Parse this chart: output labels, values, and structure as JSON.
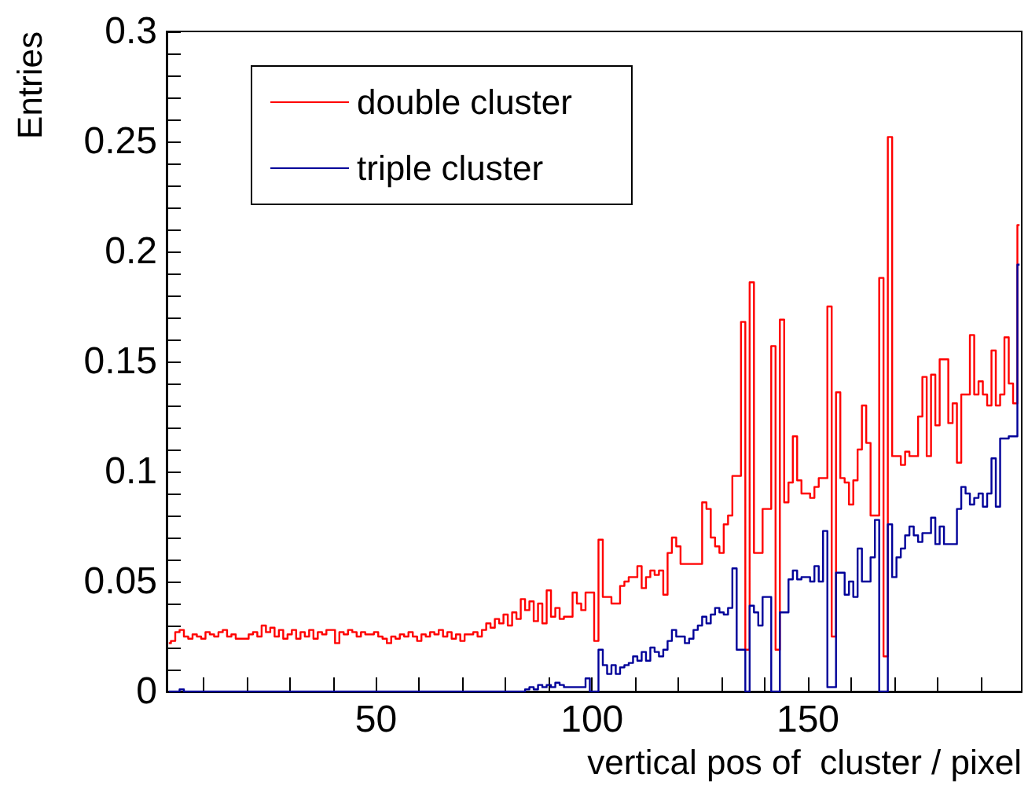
{
  "chart_data": {
    "type": "step",
    "xlabel": "vertical pos of  cluster / pixel",
    "ylabel": "Entries",
    "x": [
      2,
      3,
      4,
      5,
      6,
      7,
      8,
      9,
      10,
      11,
      12,
      13,
      14,
      15,
      16,
      17,
      18,
      19,
      20,
      21,
      22,
      23,
      24,
      25,
      26,
      27,
      28,
      29,
      30,
      31,
      32,
      33,
      34,
      35,
      36,
      37,
      38,
      39,
      40,
      41,
      42,
      43,
      44,
      45,
      46,
      47,
      48,
      49,
      50,
      51,
      52,
      53,
      54,
      55,
      56,
      57,
      58,
      59,
      60,
      61,
      62,
      63,
      64,
      65,
      66,
      67,
      68,
      69,
      70,
      71,
      72,
      73,
      74,
      75,
      76,
      77,
      78,
      79,
      80,
      81,
      82,
      83,
      84,
      85,
      86,
      87,
      88,
      89,
      90,
      91,
      92,
      93,
      94,
      95,
      96,
      97,
      98,
      99,
      100,
      101,
      102,
      103,
      104,
      105,
      106,
      107,
      108,
      109,
      110,
      111,
      112,
      113,
      114,
      115,
      116,
      117,
      118,
      119,
      120,
      121,
      122,
      123,
      124,
      125,
      126,
      127,
      128,
      129,
      130,
      131,
      132,
      133,
      134,
      135,
      136,
      137,
      138,
      139,
      140,
      141,
      142,
      143,
      144,
      145,
      146,
      147,
      148,
      149,
      150,
      151,
      152,
      153,
      154,
      155,
      156,
      157,
      158,
      159,
      160,
      161,
      162,
      163,
      164,
      165,
      166,
      167,
      168,
      169,
      170,
      171,
      172,
      173,
      174,
      175,
      176,
      177,
      178,
      179,
      180,
      181,
      182,
      183,
      184,
      185,
      186,
      187,
      188,
      189,
      190,
      191,
      192,
      193,
      194,
      195,
      196,
      197,
      198,
      199
    ],
    "series": [
      {
        "name": "double cluster",
        "color": "#ff0000",
        "values": [
          0.022,
          0.023,
          0.027,
          0.028,
          0.025,
          0.024,
          0.026,
          0.025,
          0.024,
          0.027,
          0.026,
          0.025,
          0.027,
          0.028,
          0.025,
          0.026,
          0.024,
          0.024,
          0.024,
          0.026,
          0.027,
          0.025,
          0.03,
          0.027,
          0.029,
          0.025,
          0.028,
          0.024,
          0.026,
          0.028,
          0.024,
          0.027,
          0.025,
          0.028,
          0.024,
          0.027,
          0.026,
          0.028,
          0.028,
          0.022,
          0.027,
          0.026,
          0.028,
          0.027,
          0.025,
          0.027,
          0.026,
          0.026,
          0.027,
          0.025,
          0.024,
          0.022,
          0.025,
          0.024,
          0.026,
          0.025,
          0.027,
          0.025,
          0.023,
          0.026,
          0.025,
          0.027,
          0.026,
          0.028,
          0.025,
          0.027,
          0.024,
          0.026,
          0.023,
          0.026,
          0.026,
          0.027,
          0.025,
          0.028,
          0.031,
          0.029,
          0.033,
          0.031,
          0.035,
          0.03,
          0.036,
          0.033,
          0.042,
          0.037,
          0.041,
          0.032,
          0.04,
          0.031,
          0.046,
          0.034,
          0.038,
          0.033,
          0.034,
          0.034,
          0.045,
          0.04,
          0.037,
          0.045,
          0.045,
          0.023,
          0.069,
          0.043,
          0.043,
          0.04,
          0.04,
          0.048,
          0.05,
          0.052,
          0.052,
          0.057,
          0.047,
          0.052,
          0.055,
          0.053,
          0.055,
          0.044,
          0.063,
          0.07,
          0.066,
          0.058,
          0.058,
          0.058,
          0.058,
          0.058,
          0.086,
          0.083,
          0.07,
          0.066,
          0.063,
          0.076,
          0.08,
          0.098,
          0.098,
          0.168,
          0.019,
          0.186,
          0.063,
          0.063,
          0.083,
          0.083,
          0.157,
          0.019,
          0.169,
          0.086,
          0.095,
          0.116,
          0.096,
          0.09,
          0.09,
          0.088,
          0.093,
          0.097,
          0.097,
          0.175,
          0.025,
          0.136,
          0.097,
          0.095,
          0.085,
          0.096,
          0.11,
          0.13,
          0.113,
          0.08,
          0.08,
          0.188,
          0.016,
          0.252,
          0.107,
          0.107,
          0.103,
          0.109,
          0.107,
          0.107,
          0.125,
          0.143,
          0.107,
          0.144,
          0.121,
          0.151,
          0.151,
          0.122,
          0.131,
          0.104,
          0.135,
          0.135,
          0.162,
          0.135,
          0.141,
          0.135,
          0.13,
          0.155,
          0.13,
          0.135,
          0.161,
          0.14,
          0.131,
          0.212
        ]
      },
      {
        "name": "triple cluster",
        "color": "#000099",
        "values": [
          0,
          0,
          0,
          0.001,
          0,
          0,
          0,
          0,
          0,
          0,
          0,
          0,
          0,
          0,
          0,
          0,
          0,
          0,
          0,
          0,
          0,
          0,
          0,
          0,
          0,
          0,
          0,
          0,
          0,
          0,
          0,
          0,
          0,
          0,
          0,
          0,
          0,
          0,
          0,
          0,
          0,
          0,
          0,
          0,
          0,
          0,
          0,
          0,
          0,
          0,
          0,
          0,
          0,
          0,
          0,
          0,
          0,
          0,
          0,
          0,
          0,
          0,
          0,
          0,
          0,
          0,
          0,
          0,
          0,
          0,
          0,
          0,
          0,
          0,
          0,
          0,
          0,
          0,
          0,
          0,
          0,
          0,
          0,
          0.001,
          0.002,
          0.001,
          0.003,
          0.002,
          0.003,
          0.002,
          0.004,
          0.003,
          0.002,
          0.002,
          0.002,
          0.002,
          0.002,
          0.006,
          0,
          0,
          0.019,
          0.012,
          0.008,
          0.012,
          0.008,
          0.011,
          0.012,
          0.013,
          0.016,
          0.014,
          0.018,
          0.014,
          0.02,
          0.018,
          0.016,
          0.019,
          0.023,
          0.028,
          0.025,
          0.025,
          0.022,
          0.024,
          0.028,
          0.03,
          0.034,
          0.031,
          0.035,
          0.038,
          0.036,
          0.035,
          0.038,
          0.056,
          0.019,
          0.019,
          0,
          0.039,
          0.036,
          0.03,
          0.043,
          0.043,
          0,
          0,
          0.036,
          0.036,
          0.051,
          0.055,
          0.051,
          0.052,
          0.052,
          0.05,
          0.057,
          0.05,
          0.073,
          0.002,
          0.002,
          0.054,
          0.054,
          0.044,
          0.05,
          0.043,
          0.065,
          0.05,
          0.05,
          0.061,
          0.078,
          0,
          0,
          0.076,
          0.052,
          0.061,
          0.065,
          0.071,
          0.075,
          0.071,
          0.068,
          0.072,
          0.072,
          0.079,
          0.067,
          0.075,
          0.067,
          0.067,
          0.067,
          0.083,
          0.093,
          0.09,
          0.085,
          0.088,
          0.09,
          0.084,
          0.09,
          0.106,
          0.084,
          0.115,
          0.115,
          0.116,
          0.116,
          0.194
        ]
      }
    ],
    "xlim": [
      1.5,
      199.5
    ],
    "xticks": [
      {
        "value": 10,
        "label": null
      },
      {
        "value": 20,
        "label": null
      },
      {
        "value": 30,
        "label": null
      },
      {
        "value": 40,
        "label": null
      },
      50,
      {
        "value": 60,
        "label": null
      },
      {
        "value": 70,
        "label": null
      },
      {
        "value": 80,
        "label": null
      },
      {
        "value": 90,
        "label": null
      },
      100,
      {
        "value": 110,
        "label": null
      },
      {
        "value": 120,
        "label": null
      },
      {
        "value": 130,
        "label": null
      },
      {
        "value": 140,
        "label": null
      },
      150,
      {
        "value": 160,
        "label": null
      },
      {
        "value": 170,
        "label": null
      },
      {
        "value": 180,
        "label": null
      },
      {
        "value": 190,
        "label": null
      }
    ],
    "ylim": [
      0,
      0.3
    ],
    "yticks": [
      0,
      {
        "value": 0.01,
        "label": null
      },
      {
        "value": 0.02,
        "label": null
      },
      {
        "value": 0.03,
        "label": null
      },
      {
        "value": 0.04,
        "label": null
      },
      0.05,
      {
        "value": 0.06,
        "label": null
      },
      {
        "value": 0.07,
        "label": null
      },
      {
        "value": 0.08,
        "label": null
      },
      {
        "value": 0.09,
        "label": null
      },
      0.1,
      {
        "value": 0.11,
        "label": null
      },
      {
        "value": 0.12,
        "label": null
      },
      {
        "value": 0.13,
        "label": null
      },
      {
        "value": 0.14,
        "label": null
      },
      0.15,
      {
        "value": 0.16,
        "label": null
      },
      {
        "value": 0.17,
        "label": null
      },
      {
        "value": 0.18,
        "label": null
      },
      {
        "value": 0.19,
        "label": null
      },
      0.2,
      {
        "value": 0.21,
        "label": null
      },
      {
        "value": 0.22,
        "label": null
      },
      {
        "value": 0.23,
        "label": null
      },
      {
        "value": 0.24,
        "label": null
      },
      0.25,
      {
        "value": 0.26,
        "label": null
      },
      {
        "value": 0.27,
        "label": null
      },
      {
        "value": 0.28,
        "label": null
      },
      {
        "value": 0.29,
        "label": null
      },
      0.3
    ],
    "legend": "top left",
    "grid": false,
    "marker": "none"
  }
}
